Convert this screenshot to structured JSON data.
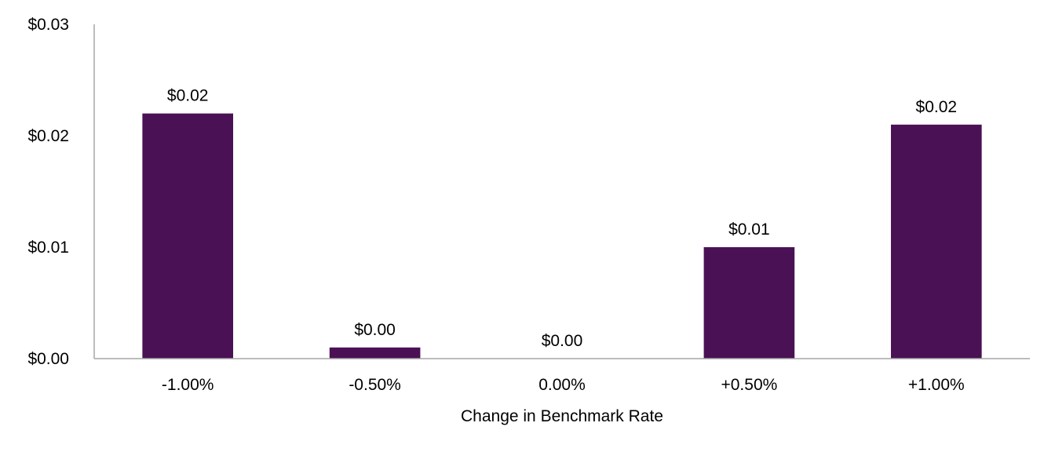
{
  "chart_data": {
    "type": "bar",
    "title": "",
    "xlabel": "Change in Benchmark Rate",
    "ylabel": "",
    "categories": [
      "-1.00%",
      "-0.50%",
      "0.00%",
      "+0.50%",
      "+1.00%"
    ],
    "values": [
      0.022,
      0.001,
      0.0,
      0.01,
      0.021
    ],
    "data_labels": [
      "$0.02",
      "$0.00",
      "$0.00",
      "$0.01",
      "$0.02"
    ],
    "y_ticks": [
      0.0,
      0.01,
      0.02,
      0.03
    ],
    "y_tick_labels": [
      "$0.00",
      "$0.01",
      "$0.02",
      "$0.03"
    ],
    "ylim": [
      0,
      0.03
    ],
    "grid": false,
    "legend": "none",
    "bar_color": "#4a1155",
    "axis_color": "#a6a6a6"
  }
}
